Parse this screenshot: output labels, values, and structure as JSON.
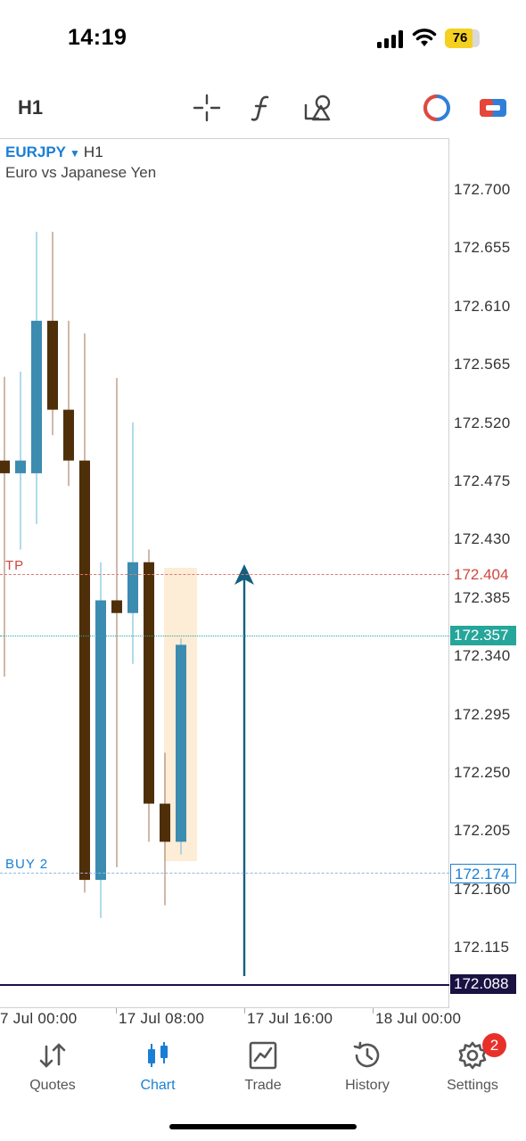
{
  "status": {
    "time": "14:19",
    "battery": "76"
  },
  "toolbar": {
    "timeframe": "H1",
    "tools": [
      {
        "icon": "crosshair-icon"
      },
      {
        "icon": "indicator-function-icon"
      },
      {
        "icon": "objects-shapes-icon"
      },
      {
        "icon": "one-click-trading-icon"
      },
      {
        "icon": "trade-panel-icon"
      }
    ]
  },
  "chart": {
    "symbol": "EURJPY",
    "caret": "▼",
    "timeframe": "H1",
    "description": "Euro vs Japanese Yen",
    "colors": {
      "bull": "#3c8bb0",
      "bear": "#4f2f0a",
      "tp": "#d0463c",
      "buy": "#1a7fd4",
      "bid": "#26a69a",
      "ask": "#1a1242"
    },
    "price_labels": [
      "172.700",
      "172.655",
      "172.610",
      "172.565",
      "172.520",
      "172.475",
      "172.430",
      "172.385",
      "172.340",
      "172.295",
      "172.250",
      "172.205",
      "172.160",
      "172.115"
    ],
    "time_labels": [
      "7 Jul 00:00",
      "17 Jul 08:00",
      "17 Jul 16:00",
      "18 Jul 00:00"
    ],
    "tp": {
      "tag": "TP",
      "price": "172.404"
    },
    "buy": {
      "tag": "BUY 2",
      "price": "172.174"
    },
    "bid": {
      "price": "172.357"
    },
    "last": {
      "price": "172.088"
    }
  },
  "chart_data": {
    "type": "candlestick",
    "symbol": "EURJPY",
    "timeframe": "H1",
    "candles": [
      {
        "o": 172.5,
        "h": 172.566,
        "l": 172.33,
        "c": 172.49
      },
      {
        "o": 172.49,
        "h": 172.57,
        "l": 172.43,
        "c": 172.5
      },
      {
        "o": 172.49,
        "h": 172.68,
        "l": 172.45,
        "c": 172.61
      },
      {
        "o": 172.61,
        "h": 172.68,
        "l": 172.52,
        "c": 172.54
      },
      {
        "o": 172.54,
        "h": 172.61,
        "l": 172.48,
        "c": 172.5
      },
      {
        "o": 172.5,
        "h": 172.6,
        "l": 172.16,
        "c": 172.17
      },
      {
        "o": 172.17,
        "h": 172.42,
        "l": 172.14,
        "c": 172.39
      },
      {
        "o": 172.39,
        "h": 172.565,
        "l": 172.18,
        "c": 172.38
      },
      {
        "o": 172.38,
        "h": 172.53,
        "l": 172.34,
        "c": 172.42
      },
      {
        "o": 172.42,
        "h": 172.43,
        "l": 172.2,
        "c": 172.23
      },
      {
        "o": 172.23,
        "h": 172.27,
        "l": 172.15,
        "c": 172.2
      },
      {
        "o": 172.2,
        "h": 172.36,
        "l": 172.19,
        "c": 172.355
      }
    ],
    "y_range": [
      172.088,
      172.713
    ],
    "x_labels": [
      "7 Jul 00:00",
      "17 Jul 08:00",
      "17 Jul 16:00",
      "18 Jul 00:00"
    ],
    "levels": {
      "tp": 172.404,
      "buy": 172.174,
      "bid": 172.357,
      "last": 172.088
    }
  },
  "tabs": [
    {
      "label": "Quotes",
      "icon": "quotes-arrows-icon"
    },
    {
      "label": "Chart",
      "icon": "candlestick-chart-icon"
    },
    {
      "label": "Trade",
      "icon": "trade-chart-icon"
    },
    {
      "label": "History",
      "icon": "history-clock-icon"
    },
    {
      "label": "Settings",
      "icon": "gear-icon",
      "badge": "2"
    }
  ]
}
